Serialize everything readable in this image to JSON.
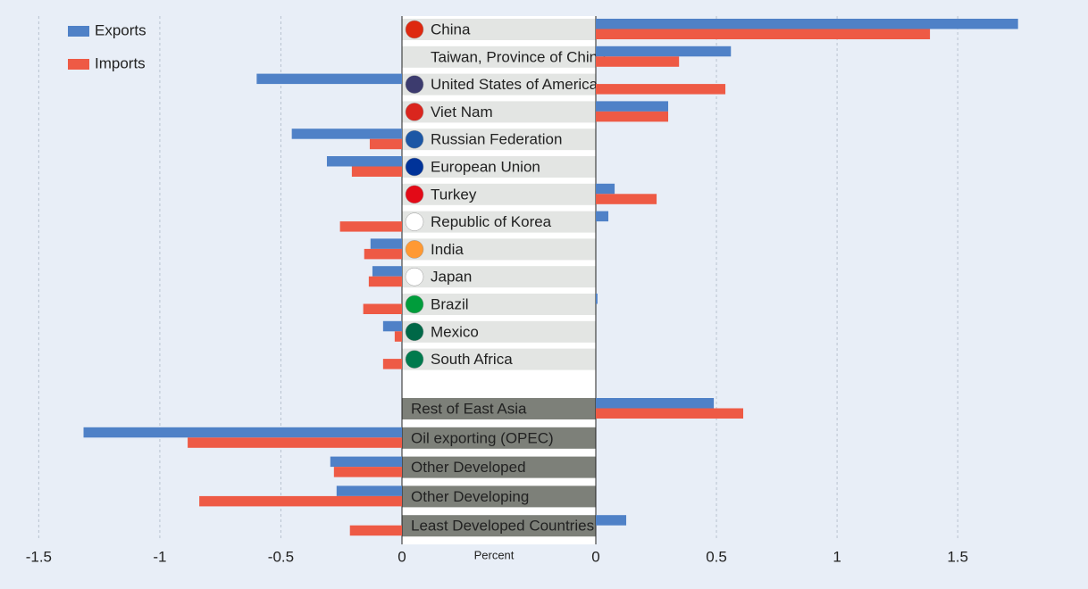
{
  "chart_data": {
    "type": "diverging-bar",
    "x_label": "Percent",
    "categories": [
      "China",
      "Taiwan, Province of China",
      "United States of America",
      "Viet Nam",
      "Russian Federation",
      "European Union",
      "Turkey",
      "Republic of Korea",
      "India",
      "Japan",
      "Brazil",
      "Mexico",
      "South Africa",
      "Rest of East Asia",
      "Oil exporting (OPEC)",
      "Other Developed",
      "Other Developing",
      "Least Developed Countries"
    ],
    "series": [
      {
        "name": "Exports",
        "color": "#4f81c7",
        "values": [
          1.75,
          0.56,
          -0.6,
          0.3,
          -0.455,
          -0.31,
          0.078,
          0.052,
          -0.13,
          -0.122,
          0.007,
          -0.078,
          0,
          0.489,
          -1.315,
          -0.296,
          -0.27,
          0.126
        ]
      },
      {
        "name": "Imports",
        "color": "#ee5a45",
        "values": [
          1.385,
          0.345,
          0.537,
          0.3,
          -0.133,
          -0.207,
          0.252,
          -0.256,
          -0.156,
          -0.137,
          -0.16,
          -0.03,
          -0.078,
          0.611,
          -0.885,
          -0.281,
          -0.837,
          -0.215
        ]
      }
    ],
    "xlim": [
      -1.66,
      2.04
    ],
    "xticks": [
      -1.5,
      -1,
      -0.5,
      0,
      0.5,
      1,
      1.5
    ],
    "grid": true,
    "legend": "top-left"
  }
}
